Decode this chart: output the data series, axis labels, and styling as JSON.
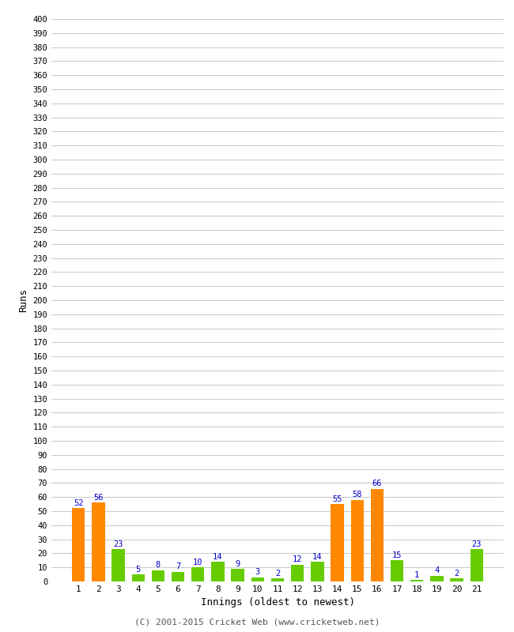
{
  "innings": [
    1,
    2,
    3,
    4,
    5,
    6,
    7,
    8,
    9,
    10,
    11,
    12,
    13,
    14,
    15,
    16,
    17,
    18,
    19,
    20,
    21
  ],
  "values": [
    52,
    56,
    23,
    5,
    8,
    7,
    10,
    14,
    9,
    3,
    2,
    12,
    14,
    55,
    58,
    66,
    15,
    1,
    4,
    2,
    23
  ],
  "colors": [
    "#ff8800",
    "#ff8800",
    "#66cc00",
    "#66cc00",
    "#66cc00",
    "#66cc00",
    "#66cc00",
    "#66cc00",
    "#66cc00",
    "#66cc00",
    "#66cc00",
    "#66cc00",
    "#66cc00",
    "#ff8800",
    "#ff8800",
    "#ff8800",
    "#66cc00",
    "#66cc00",
    "#66cc00",
    "#66cc00",
    "#66cc00"
  ],
  "ylabel": "Runs",
  "xlabel": "Innings (oldest to newest)",
  "ytick_step": 10,
  "ymax": 400,
  "footer": "(C) 2001-2015 Cricket Web (www.cricketweb.net)",
  "label_color": "#0000cc",
  "background_color": "#ffffff",
  "grid_color": "#cccccc"
}
